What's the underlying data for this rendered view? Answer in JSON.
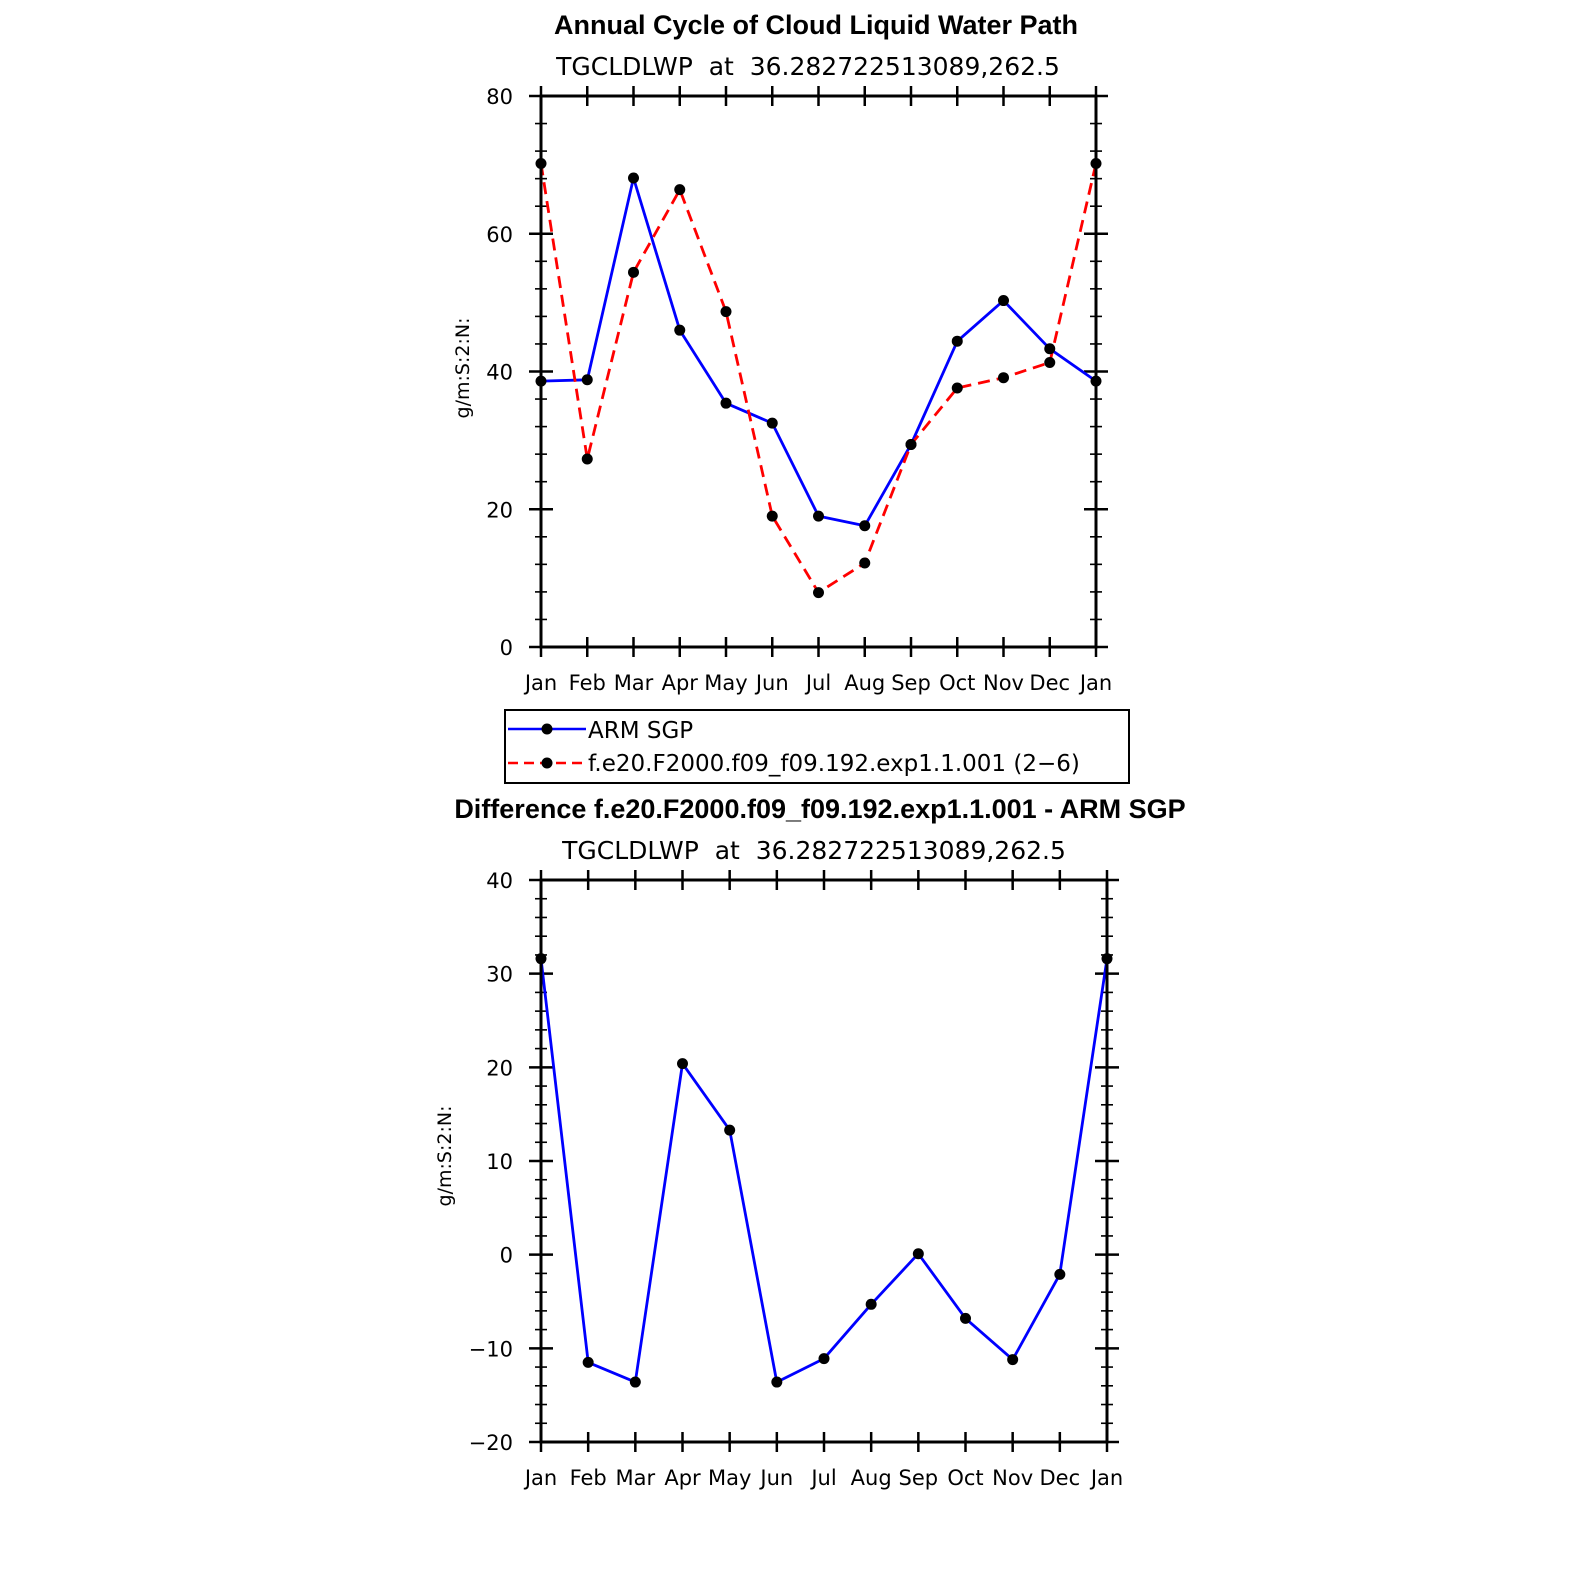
{
  "chart_data": [
    {
      "type": "line",
      "title": "Annual Cycle of Cloud Liquid Water Path",
      "subtitle": "TGCLDLWP  at  36.282722513089,262.5",
      "ylabel": "g/m:S:2:N:",
      "xlabel": "",
      "categories": [
        "Jan",
        "Feb",
        "Mar",
        "Apr",
        "May",
        "Jun",
        "Jul",
        "Aug",
        "Sep",
        "Oct",
        "Nov",
        "Dec",
        "Jan"
      ],
      "ylim": [
        0,
        80
      ],
      "yticks": [
        "0",
        "20",
        "40",
        "60",
        "80"
      ],
      "grid": false,
      "legend": "below",
      "series": [
        {
          "name": "ARM SGP",
          "color": "#0000ff",
          "style": "solid",
          "values": [
            38.6,
            38.8,
            68.1,
            46.0,
            35.4,
            32.5,
            19.0,
            17.6,
            29.4,
            44.4,
            50.3,
            43.3,
            38.6
          ]
        },
        {
          "name": "f.e20.F2000.f09_f09.192.exp1.1.001 (2−6)",
          "color": "#ff0000",
          "style": "dashed",
          "values": [
            70.2,
            27.3,
            54.4,
            66.4,
            48.7,
            19.0,
            7.9,
            12.2,
            29.4,
            37.6,
            39.1,
            41.3,
            70.2
          ]
        }
      ]
    },
    {
      "type": "line",
      "title": "Difference f.e20.F2000.f09_f09.192.exp1.1.001 - ARM SGP",
      "subtitle": "TGCLDLWP  at  36.282722513089,262.5",
      "ylabel": "g/m:S:2:N:",
      "xlabel": "",
      "categories": [
        "Jan",
        "Feb",
        "Mar",
        "Apr",
        "May",
        "Jun",
        "Jul",
        "Aug",
        "Sep",
        "Oct",
        "Nov",
        "Dec",
        "Jan"
      ],
      "ylim": [
        -20,
        40
      ],
      "yticks": [
        "−20",
        "−10",
        "0",
        "10",
        "20",
        "30",
        "40"
      ],
      "grid": false,
      "series": [
        {
          "color": "#0000ff",
          "style": "solid",
          "values": [
            31.6,
            -11.5,
            -13.6,
            20.4,
            13.3,
            -13.6,
            -11.1,
            -5.3,
            0.1,
            -6.8,
            -11.2,
            -2.1,
            31.6
          ]
        }
      ]
    }
  ]
}
